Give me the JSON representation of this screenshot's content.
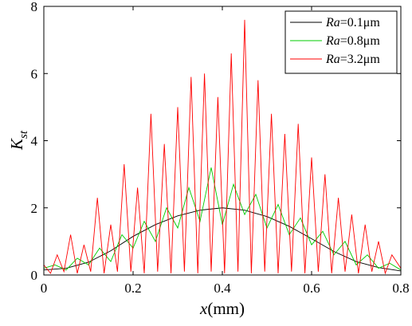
{
  "chart_data": {
    "type": "line",
    "xlabel_var": "x",
    "xlabel_unit": "(mm)",
    "ylabel_main": "K",
    "ylabel_sub": "st",
    "xlim": [
      0,
      0.8
    ],
    "ylim": [
      0,
      8
    ],
    "xticks": [
      0,
      0.2,
      0.4,
      0.6,
      0.8
    ],
    "xtick_labels": [
      "0",
      "0.2",
      "0.4",
      "0.6",
      "0.8"
    ],
    "yticks": [
      0,
      2,
      4,
      6,
      8
    ],
    "ytick_labels": [
      "0",
      "2",
      "4",
      "6",
      "8"
    ],
    "legend_position": "top-right",
    "series": [
      {
        "name_var": "Ra",
        "name_rest": "=0.1μm",
        "color": "#000000",
        "x": [
          0,
          0.05,
          0.1,
          0.15,
          0.2,
          0.25,
          0.3,
          0.35,
          0.4,
          0.45,
          0.5,
          0.55,
          0.6,
          0.65,
          0.7,
          0.75,
          0.8
        ],
        "values": [
          0.15,
          0.2,
          0.38,
          0.72,
          1.15,
          1.5,
          1.76,
          1.93,
          2.0,
          1.93,
          1.74,
          1.45,
          1.08,
          0.7,
          0.4,
          0.22,
          0.12
        ]
      },
      {
        "name_var": "Ra",
        "name_rest": "=0.8μm",
        "color": "#00cc00",
        "x": [
          0,
          0.025,
          0.05,
          0.075,
          0.1,
          0.125,
          0.15,
          0.175,
          0.2,
          0.225,
          0.25,
          0.275,
          0.3,
          0.325,
          0.35,
          0.375,
          0.4,
          0.425,
          0.45,
          0.475,
          0.5,
          0.525,
          0.55,
          0.575,
          0.6,
          0.625,
          0.65,
          0.675,
          0.7,
          0.725,
          0.75,
          0.775,
          0.8
        ],
        "values": [
          0.2,
          0.3,
          0.15,
          0.5,
          0.3,
          0.8,
          0.4,
          1.2,
          0.8,
          1.6,
          1.0,
          2.0,
          1.4,
          2.6,
          1.6,
          3.2,
          1.5,
          2.7,
          1.8,
          2.4,
          1.4,
          2.1,
          1.2,
          1.7,
          0.9,
          1.3,
          0.6,
          1.0,
          0.3,
          0.6,
          0.2,
          0.35,
          0.15
        ]
      },
      {
        "name_var": "Ra",
        "name_rest": "=3.2μm",
        "color": "#ff0000",
        "x": [
          0,
          0.015,
          0.03,
          0.045,
          0.06,
          0.075,
          0.09,
          0.105,
          0.12,
          0.135,
          0.15,
          0.165,
          0.18,
          0.195,
          0.21,
          0.225,
          0.24,
          0.255,
          0.27,
          0.285,
          0.3,
          0.315,
          0.33,
          0.345,
          0.36,
          0.375,
          0.39,
          0.405,
          0.42,
          0.435,
          0.45,
          0.465,
          0.48,
          0.495,
          0.51,
          0.525,
          0.54,
          0.555,
          0.57,
          0.585,
          0.6,
          0.615,
          0.63,
          0.645,
          0.66,
          0.675,
          0.69,
          0.705,
          0.72,
          0.735,
          0.75,
          0.765,
          0.78,
          0.8
        ],
        "values": [
          0.3,
          0.05,
          0.6,
          0.1,
          1.2,
          0.05,
          0.9,
          0.1,
          2.3,
          0.05,
          1.5,
          0.1,
          3.3,
          0.1,
          2.6,
          0.05,
          4.8,
          0.1,
          3.9,
          0.05,
          5.0,
          0.1,
          5.9,
          0.05,
          6.0,
          0.1,
          5.3,
          0.05,
          6.6,
          0.1,
          7.6,
          0.05,
          5.8,
          0.1,
          4.8,
          0.05,
          4.2,
          0.1,
          4.5,
          0.05,
          3.5,
          0.1,
          3.0,
          0.05,
          2.3,
          0.1,
          1.8,
          0.05,
          1.5,
          0.1,
          1.0,
          0.05,
          0.6,
          0.2
        ]
      }
    ]
  }
}
